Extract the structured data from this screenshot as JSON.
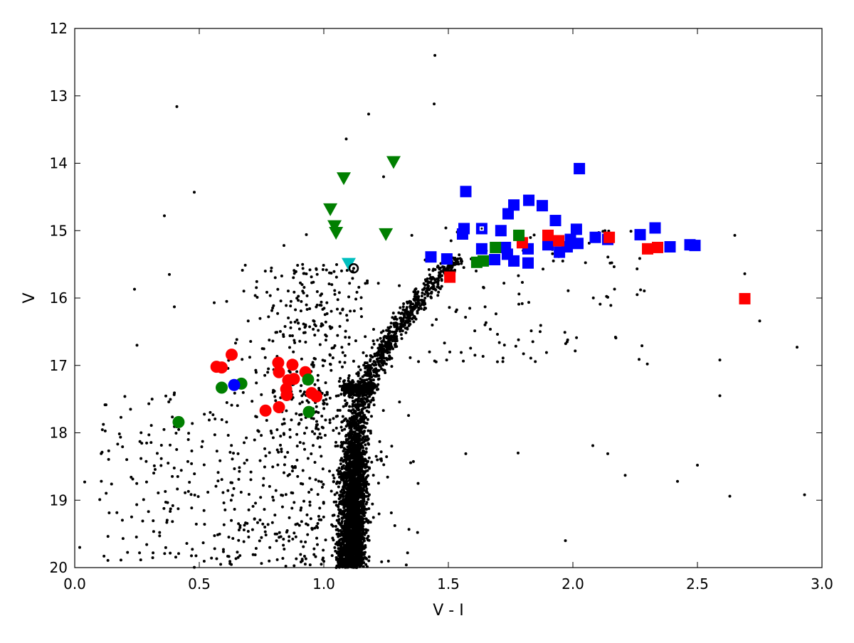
{
  "chart_data": {
    "type": "scatter",
    "title": "",
    "xlabel": "V - I",
    "ylabel": "V",
    "xlim": [
      0.0,
      3.0
    ],
    "ylim": [
      20,
      12
    ],
    "y_inverted": true,
    "grid": false,
    "legend": "none",
    "xticks": [
      "0.0",
      "0.5",
      "1.0",
      "1.5",
      "2.0",
      "2.5",
      "3.0"
    ],
    "yticks": [
      "12",
      "13",
      "14",
      "15",
      "16",
      "17",
      "18",
      "19",
      "20"
    ],
    "colors": {
      "blue": "#0000ff",
      "red": "#ff0000",
      "green": "#007f00",
      "cyan": "#00bfbf",
      "black": "#000000"
    },
    "series": [
      {
        "marker": "square",
        "color": "blue",
        "points": [
          [
            2.026,
            14.08
          ],
          [
            1.57,
            14.42
          ],
          [
            1.763,
            14.62
          ],
          [
            1.823,
            14.55
          ],
          [
            1.877,
            14.63
          ],
          [
            1.74,
            14.75
          ],
          [
            1.93,
            14.85
          ],
          [
            1.563,
            14.97
          ],
          [
            1.557,
            15.05
          ],
          [
            1.711,
            15.0
          ],
          [
            2.014,
            14.98
          ],
          [
            1.99,
            15.13
          ],
          [
            2.02,
            15.19
          ],
          [
            2.09,
            15.1
          ],
          [
            2.14,
            15.13
          ],
          [
            2.27,
            15.06
          ],
          [
            2.33,
            14.96
          ],
          [
            2.39,
            15.24
          ],
          [
            2.47,
            15.21
          ],
          [
            2.49,
            15.22
          ],
          [
            1.9,
            15.21
          ],
          [
            1.946,
            15.32
          ],
          [
            1.977,
            15.24
          ],
          [
            1.634,
            15.27
          ],
          [
            1.729,
            15.25
          ],
          [
            1.82,
            15.27
          ],
          [
            1.737,
            15.35
          ],
          [
            1.686,
            15.43
          ],
          [
            1.763,
            15.45
          ],
          [
            1.82,
            15.48
          ],
          [
            1.43,
            15.39
          ],
          [
            1.494,
            15.42
          ]
        ]
      },
      {
        "marker": "square-open-center",
        "color": "blue",
        "points": [
          [
            1.634,
            14.97
          ]
        ]
      },
      {
        "marker": "square",
        "color": "red",
        "points": [
          [
            1.9,
            15.07
          ],
          [
            1.943,
            15.15
          ],
          [
            1.797,
            15.18
          ],
          [
            2.146,
            15.1
          ],
          [
            2.3,
            15.27
          ],
          [
            2.34,
            15.25
          ],
          [
            1.506,
            15.69
          ],
          [
            2.69,
            16.01
          ]
        ]
      },
      {
        "marker": "square",
        "color": "green",
        "points": [
          [
            1.783,
            15.07
          ],
          [
            1.689,
            15.25
          ],
          [
            1.614,
            15.47
          ],
          [
            1.64,
            15.45
          ]
        ]
      },
      {
        "marker": "triangle-down",
        "color": "green",
        "points": [
          [
            1.08,
            14.23
          ],
          [
            1.28,
            13.99
          ],
          [
            1.026,
            14.69
          ],
          [
            1.043,
            14.94
          ],
          [
            1.049,
            15.04
          ],
          [
            1.249,
            15.06
          ]
        ]
      },
      {
        "marker": "triangle-down",
        "color": "cyan",
        "points": [
          [
            1.1,
            15.5
          ]
        ]
      },
      {
        "marker": "ring",
        "color": "black",
        "points": [
          [
            1.12,
            15.56
          ]
        ]
      },
      {
        "marker": "circle",
        "color": "red",
        "points": [
          [
            0.63,
            16.84
          ],
          [
            0.569,
            17.02
          ],
          [
            0.59,
            17.03
          ],
          [
            0.817,
            16.96
          ],
          [
            0.874,
            16.99
          ],
          [
            0.82,
            17.1
          ],
          [
            0.926,
            17.1
          ],
          [
            0.857,
            17.22
          ],
          [
            0.88,
            17.2
          ],
          [
            0.851,
            17.44
          ],
          [
            0.951,
            17.41
          ],
          [
            0.97,
            17.46
          ],
          [
            0.766,
            17.67
          ],
          [
            0.82,
            17.62
          ],
          [
            0.849,
            17.35
          ]
        ]
      },
      {
        "marker": "circle",
        "color": "green",
        "points": [
          [
            0.59,
            17.33
          ],
          [
            0.669,
            17.27
          ],
          [
            0.937,
            17.21
          ],
          [
            0.94,
            17.69
          ],
          [
            0.417,
            17.84
          ]
        ]
      },
      {
        "marker": "circle",
        "color": "blue",
        "points": [
          [
            0.64,
            17.29
          ]
        ]
      },
      {
        "marker": "dot",
        "color": "black",
        "note_points": "field stars (dense cluster population drawn in addition)",
        "points": [
          [
            0.41,
            13.16
          ],
          [
            1.446,
            12.4
          ],
          [
            1.443,
            13.12
          ],
          [
            1.18,
            13.27
          ],
          [
            1.09,
            13.64
          ],
          [
            0.48,
            14.43
          ],
          [
            0.36,
            14.78
          ],
          [
            0.24,
            15.87
          ],
          [
            0.25,
            16.7
          ],
          [
            2.93,
            18.92
          ],
          [
            2.9,
            16.73
          ],
          [
            2.75,
            16.34
          ],
          [
            2.69,
            15.64
          ],
          [
            2.65,
            15.07
          ],
          [
            2.63,
            18.94
          ],
          [
            2.5,
            18.48
          ],
          [
            2.59,
            17.45
          ],
          [
            2.59,
            16.92
          ],
          [
            1.97,
            19.6
          ],
          [
            1.57,
            18.31
          ],
          [
            1.78,
            18.3
          ],
          [
            2.08,
            18.19
          ],
          [
            2.14,
            18.31
          ],
          [
            2.21,
            18.63
          ],
          [
            2.42,
            18.72
          ],
          [
            0.04,
            18.73
          ],
          [
            0.02,
            19.7
          ],
          [
            0.38,
            15.65
          ],
          [
            0.4,
            16.13
          ],
          [
            0.56,
            16.07
          ],
          [
            0.61,
            16.05
          ],
          [
            0.84,
            15.22
          ],
          [
            1.24,
            14.2
          ],
          [
            0.93,
            15.06
          ],
          [
            1.49,
            14.96
          ]
        ]
      }
    ]
  }
}
